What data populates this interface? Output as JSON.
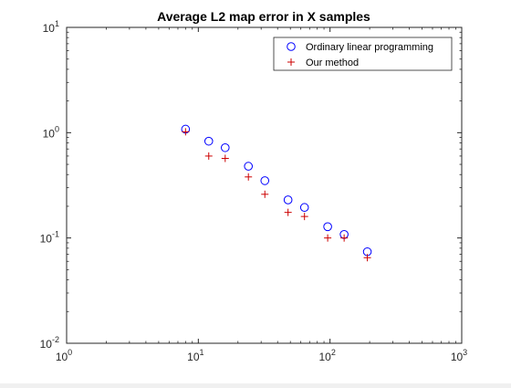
{
  "chart_data": {
    "type": "scatter",
    "title": "Average L2 map error in X samples",
    "xlabel": "",
    "ylabel": "",
    "xscale": "log",
    "yscale": "log",
    "xlim": [
      1,
      1000
    ],
    "ylim": [
      0.01,
      10
    ],
    "grid": false,
    "legend_position": "top-right",
    "x_ticks": [
      {
        "value": 1,
        "base": "10",
        "exp": "0"
      },
      {
        "value": 10,
        "base": "10",
        "exp": "1"
      },
      {
        "value": 100,
        "base": "10",
        "exp": "2"
      },
      {
        "value": 1000,
        "base": "10",
        "exp": "3"
      }
    ],
    "y_ticks": [
      {
        "value": 0.01,
        "base": "10",
        "exp": "-2"
      },
      {
        "value": 0.1,
        "base": "10",
        "exp": "-1"
      },
      {
        "value": 1,
        "base": "10",
        "exp": "0"
      },
      {
        "value": 10,
        "base": "10",
        "exp": "1"
      }
    ],
    "series": [
      {
        "name": "Ordinary linear programming",
        "marker": "circle",
        "color": "#0000ff",
        "x": [
          8,
          12,
          16,
          24,
          32,
          48,
          64,
          96,
          128,
          192
        ],
        "y": [
          1.08,
          0.83,
          0.72,
          0.48,
          0.35,
          0.23,
          0.195,
          0.128,
          0.108,
          0.074
        ]
      },
      {
        "name": "Our method",
        "marker": "plus",
        "color": "#cc0000",
        "x": [
          8,
          12,
          16,
          24,
          32,
          48,
          64,
          96,
          128,
          192
        ],
        "y": [
          1.02,
          0.6,
          0.57,
          0.38,
          0.26,
          0.175,
          0.16,
          0.1,
          0.1,
          0.065
        ]
      }
    ]
  }
}
